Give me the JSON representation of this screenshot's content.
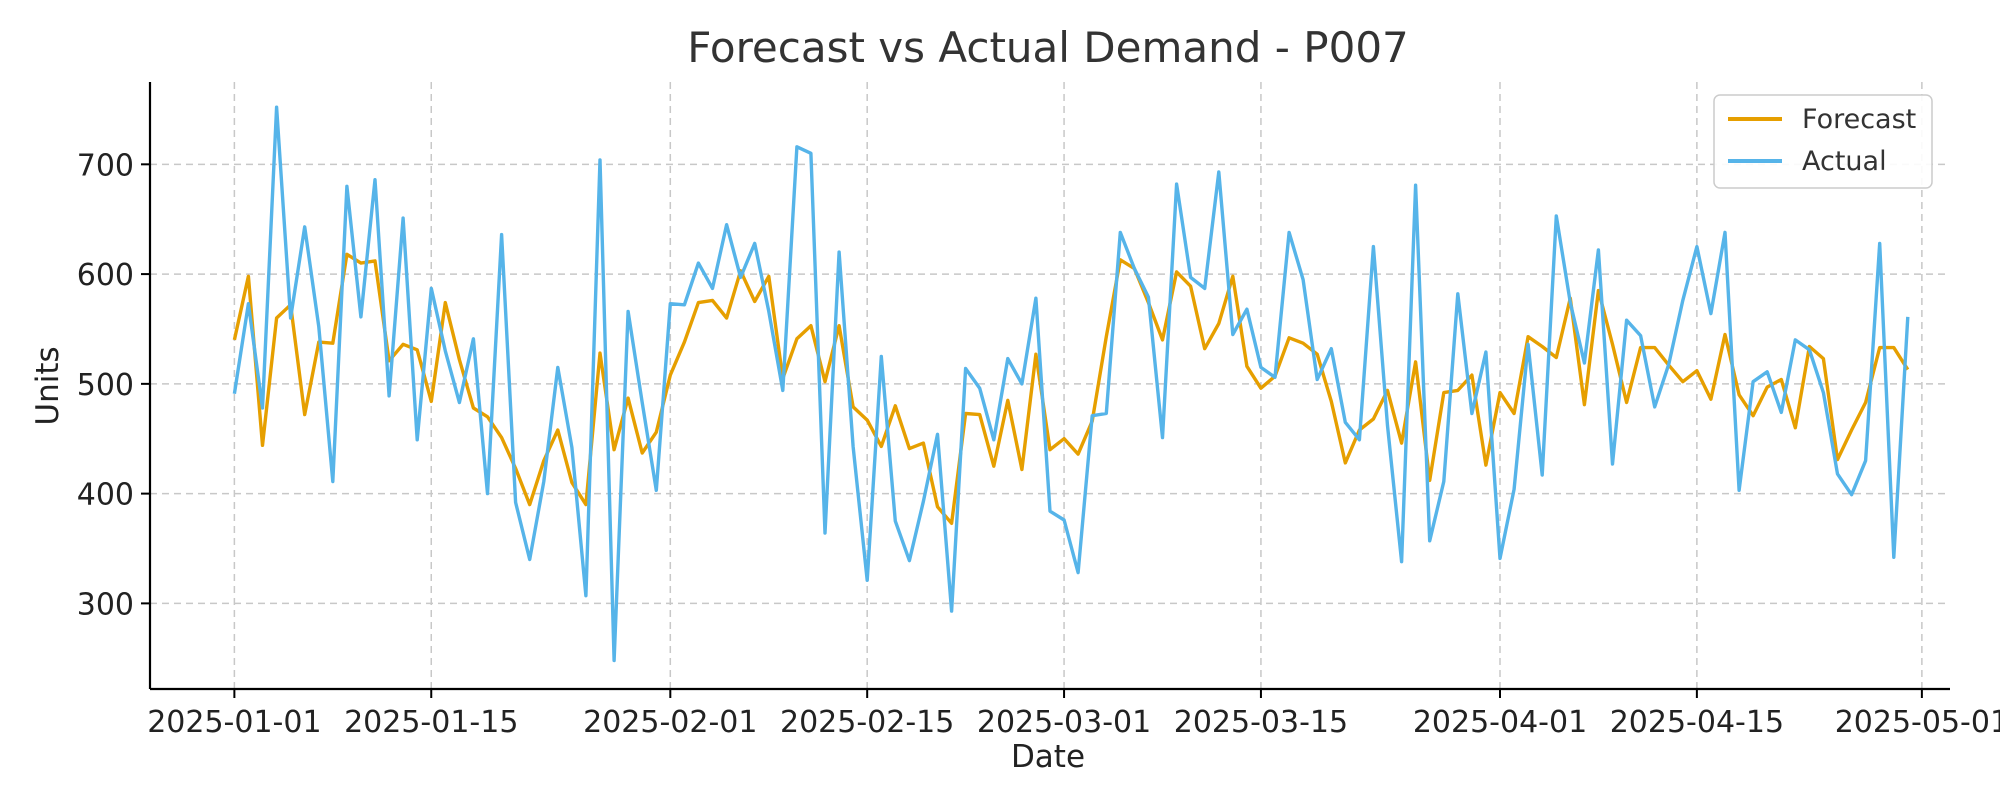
{
  "chart_data": {
    "type": "line",
    "title": "Forecast vs Actual Demand - P007",
    "xlabel": "Date",
    "ylabel": "Units",
    "x_start": "2025-01-01",
    "xlim": [
      "2024-12-26",
      "2025-05-03"
    ],
    "ylim": [
      222,
      775
    ],
    "x_ticks": [
      "2025-01-01",
      "2025-01-15",
      "2025-02-01",
      "2025-02-15",
      "2025-03-01",
      "2025-03-15",
      "2025-04-01",
      "2025-04-15",
      "2025-05-01"
    ],
    "y_ticks": [
      300,
      400,
      500,
      600,
      700
    ],
    "grid": true,
    "legend_position": "top-right",
    "series": [
      {
        "name": "Forecast",
        "color": "#E69F00",
        "values": [
          540,
          598,
          444,
          560,
          572,
          472,
          538,
          537,
          618,
          610,
          612,
          521,
          536,
          531,
          484,
          574,
          522,
          478,
          470,
          451,
          423,
          390,
          430,
          458,
          410,
          390,
          528,
          440,
          487,
          437,
          456,
          508,
          538,
          574,
          576,
          560,
          603,
          575,
          598,
          505,
          541,
          553,
          502,
          553,
          479,
          467,
          443,
          480,
          441,
          446,
          388,
          373,
          473,
          472,
          425,
          485,
          422,
          527,
          440,
          450,
          436,
          466,
          543,
          613,
          605,
          574,
          540,
          602,
          589,
          532,
          555,
          598,
          516,
          496,
          507,
          542,
          537,
          527,
          484,
          428,
          458,
          468,
          494,
          446,
          520,
          412,
          492,
          494,
          508,
          426,
          492,
          473,
          543,
          534,
          524,
          578,
          481,
          585,
          536,
          483,
          533,
          533,
          517,
          502,
          512,
          486,
          545,
          490,
          471,
          497,
          504,
          460,
          534,
          523,
          431,
          458,
          483,
          533,
          533,
          513
        ]
      },
      {
        "name": "Actual",
        "color": "#56B4E9",
        "values": [
          491,
          573,
          478,
          752,
          560,
          643,
          552,
          411,
          680,
          561,
          686,
          489,
          651,
          449,
          587,
          530,
          483,
          541,
          400,
          636,
          392,
          340,
          411,
          515,
          442,
          307,
          704,
          248,
          566,
          483,
          403,
          573,
          572,
          610,
          587,
          645,
          597,
          628,
          566,
          494,
          716,
          710,
          364,
          620,
          443,
          321,
          525,
          375,
          339,
          393,
          454,
          293,
          514,
          496,
          449,
          523,
          500,
          578,
          384,
          376,
          328,
          471,
          473,
          638,
          605,
          579,
          451,
          682,
          597,
          587,
          693,
          545,
          568,
          515,
          506,
          638,
          595,
          504,
          532,
          465,
          449,
          625,
          462,
          338,
          681,
          357,
          411,
          582,
          473,
          529,
          341,
          404,
          536,
          417,
          653,
          574,
          519,
          622,
          427,
          558,
          544,
          479,
          518,
          576,
          625,
          564,
          638,
          403,
          502,
          511,
          474,
          540,
          531,
          492,
          418,
          399,
          430,
          628,
          342,
          561
        ]
      }
    ]
  }
}
